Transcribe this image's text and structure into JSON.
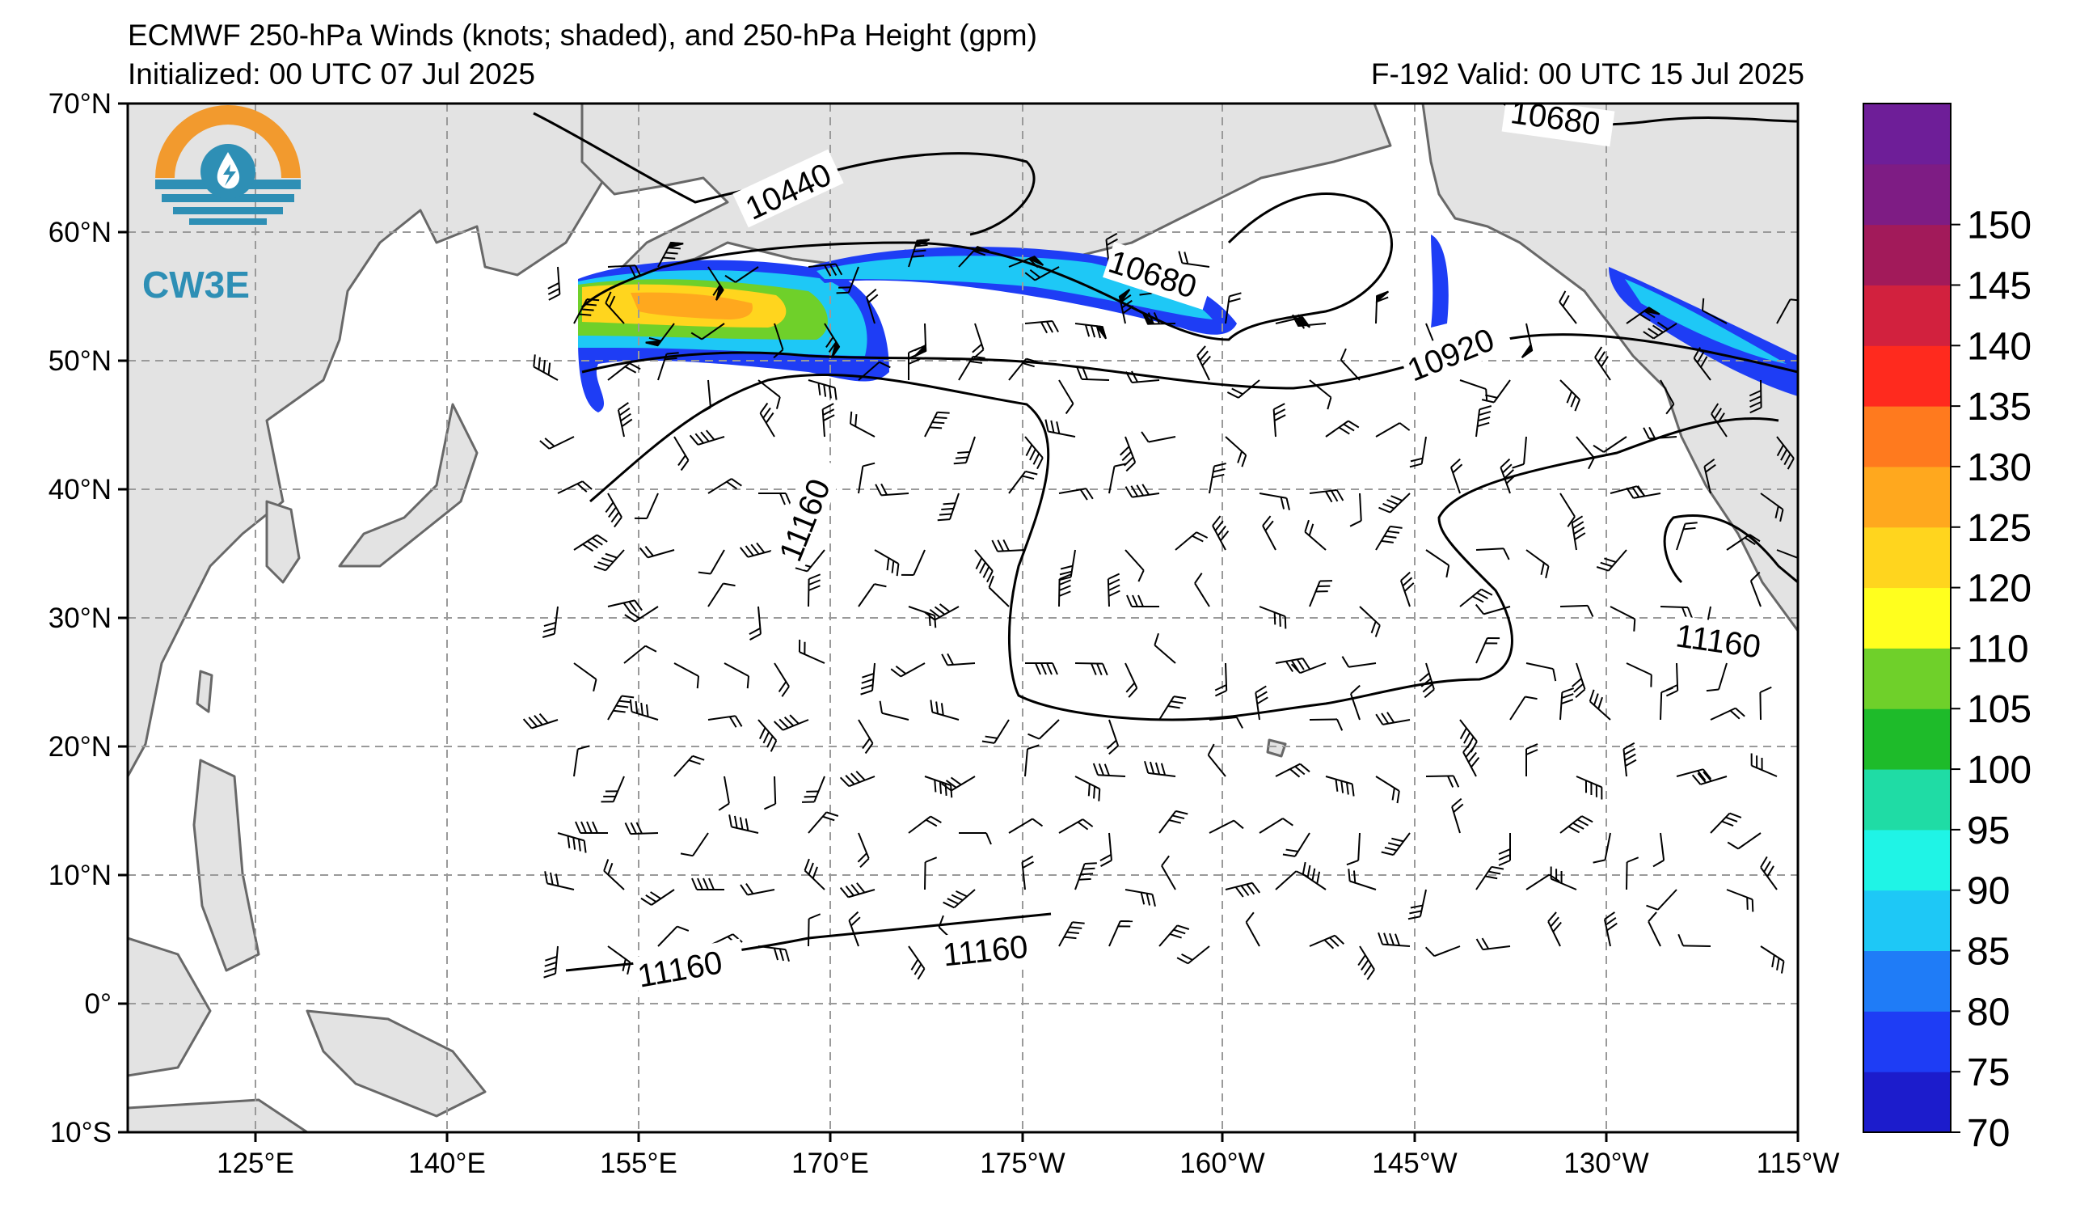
{
  "header": {
    "title": "ECMWF 250-hPa Winds (knots; shaded), and 250-hPa Height (gpm)",
    "initialized": "Initialized: 00 UTC 07 Jul 2025",
    "valid": "F-192  Valid: 00 UTC 15 Jul 2025"
  },
  "logo": {
    "text": "CW3E"
  },
  "axes": {
    "lat_labels": [
      "70°N",
      "60°N",
      "50°N",
      "40°N",
      "30°N",
      "20°N",
      "10°N",
      "0°",
      "10°S"
    ],
    "lon_labels": [
      "125°E",
      "140°E",
      "155°E",
      "170°E",
      "175°W",
      "160°W",
      "145°W",
      "130°W",
      "115°W"
    ]
  },
  "contours": {
    "labels": [
      "10440",
      "10680",
      "10680",
      "10920",
      "11160",
      "11160",
      "11160",
      "11160"
    ]
  },
  "colorbar": {
    "ticks": [
      "70",
      "75",
      "80",
      "85",
      "90",
      "95",
      "100",
      "105",
      "110",
      "120",
      "125",
      "130",
      "135",
      "140",
      "145",
      "150"
    ],
    "colors": [
      "#1c1ccc",
      "#1e3df5",
      "#1f7cf7",
      "#1ec8f6",
      "#1ff4e6",
      "#1fdca5",
      "#1ebb2a",
      "#6fd02a",
      "#ffff1e",
      "#ffd51e",
      "#ffa81e",
      "#ff7a1e",
      "#ff2a1e",
      "#d2213e",
      "#a21a5a",
      "#7e1c84",
      "#6e1e98"
    ]
  },
  "colors": {
    "land": "#e3e3e3",
    "coast": "#686868",
    "grid": "#9a9a9a"
  }
}
